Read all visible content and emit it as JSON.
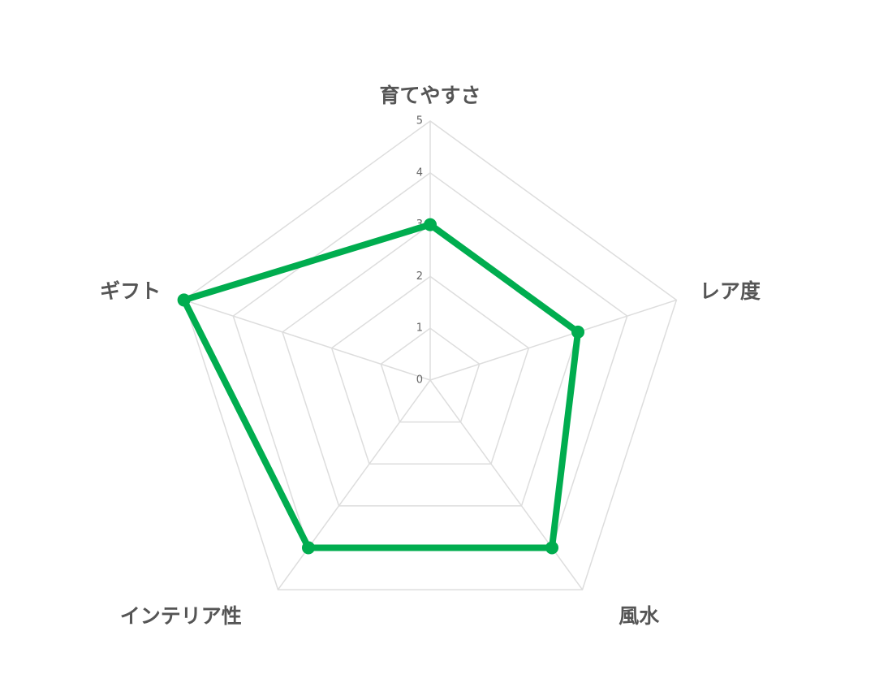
{
  "chart_data": {
    "type": "radar",
    "categories": [
      "育てやすさ",
      "レア度",
      "風水",
      "インテリア性",
      "ギフト"
    ],
    "series": [
      {
        "color": "#00ad4f",
        "values": [
          3,
          3,
          4,
          4,
          5
        ]
      }
    ],
    "ylim": [
      0,
      5
    ],
    "yticks": [
      0,
      1,
      2,
      3,
      4,
      5
    ],
    "grid": true
  }
}
